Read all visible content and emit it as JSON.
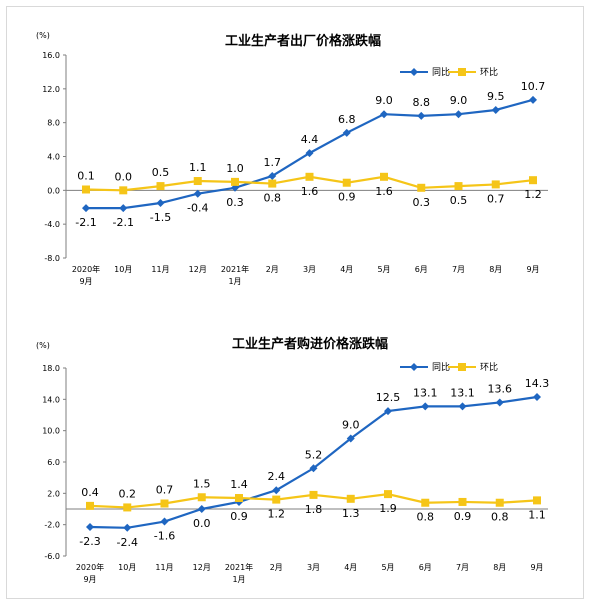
{
  "chart_data": [
    {
      "type": "line",
      "title": "工业生产者出厂价格涨跌幅",
      "unit": "(%)",
      "ylim": [
        -8.0,
        16.0
      ],
      "yticks": [
        "16.0",
        "12.0",
        "8.0",
        "4.0",
        "0.0",
        "-4.0",
        "-8.0"
      ],
      "ytick_values": [
        16,
        12,
        8,
        4,
        0,
        -4,
        -8
      ],
      "categories": [
        [
          "2020年",
          "9月"
        ],
        [
          "10月"
        ],
        [
          "11月"
        ],
        [
          "12月"
        ],
        [
          "2021年",
          "1月"
        ],
        [
          "2月"
        ],
        [
          "3月"
        ],
        [
          "4月"
        ],
        [
          "5月"
        ],
        [
          "6月"
        ],
        [
          "7月"
        ],
        [
          "8月"
        ],
        [
          "9月"
        ]
      ],
      "legend_position": "top-right",
      "series": [
        {
          "name": "同比",
          "color": "#1f66c1",
          "marker": "diamond",
          "values": [
            -2.1,
            -2.1,
            -1.5,
            -0.4,
            0.3,
            1.7,
            4.4,
            6.8,
            9.0,
            8.8,
            9.0,
            9.5,
            10.7
          ],
          "labels": [
            "-2.1",
            "-2.1",
            "-1.5",
            "-0.4",
            "0.3",
            "1.7",
            "4.4",
            "6.8",
            "9.0",
            "8.8",
            "9.0",
            "9.5",
            "10.7"
          ]
        },
        {
          "name": "环比",
          "color": "#f5c518",
          "marker": "square",
          "values": [
            0.1,
            0.0,
            0.5,
            1.1,
            1.0,
            0.8,
            1.6,
            0.9,
            1.6,
            0.3,
            0.5,
            0.7,
            1.2
          ],
          "labels": [
            "0.1",
            "0.0",
            "0.5",
            "1.1",
            "1.0",
            "0.8",
            "1.6",
            "0.9",
            "1.6",
            "0.3",
            "0.5",
            "0.7",
            "1.2"
          ]
        }
      ]
    },
    {
      "type": "line",
      "title": "工业生产者购进价格涨跌幅",
      "unit": "(%)",
      "ylim": [
        -6.0,
        18.0
      ],
      "yticks": [
        "18.0",
        "14.0",
        "10.0",
        "6.0",
        "2.0",
        "-2.0",
        "-6.0"
      ],
      "ytick_values": [
        18,
        14,
        10,
        6,
        2,
        -2,
        -6
      ],
      "categories": [
        [
          "2020年",
          "9月"
        ],
        [
          "10月"
        ],
        [
          "11月"
        ],
        [
          "12月"
        ],
        [
          "2021年",
          "1月"
        ],
        [
          "2月"
        ],
        [
          "3月"
        ],
        [
          "4月"
        ],
        [
          "5月"
        ],
        [
          "6月"
        ],
        [
          "7月"
        ],
        [
          "8月"
        ],
        [
          "9月"
        ]
      ],
      "legend_position": "top-right",
      "series": [
        {
          "name": "同比",
          "color": "#1f66c1",
          "marker": "diamond",
          "values": [
            -2.3,
            -2.4,
            -1.6,
            0.0,
            0.9,
            2.4,
            5.2,
            9.0,
            12.5,
            13.1,
            13.1,
            13.6,
            14.3
          ],
          "labels": [
            "-2.3",
            "-2.4",
            "-1.6",
            "0.0",
            "0.9",
            "2.4",
            "5.2",
            "9.0",
            "12.5",
            "13.1",
            "13.1",
            "13.6",
            "14.3"
          ]
        },
        {
          "name": "环比",
          "color": "#f5c518",
          "marker": "square",
          "values": [
            0.4,
            0.2,
            0.7,
            1.5,
            1.4,
            1.2,
            1.8,
            1.3,
            1.9,
            0.8,
            0.9,
            0.8,
            1.1
          ],
          "labels": [
            "0.4",
            "0.2",
            "0.7",
            "1.5",
            "1.4",
            "1.2",
            "1.8",
            "1.3",
            "1.9",
            "0.8",
            "0.9",
            "0.8",
            "1.1"
          ]
        }
      ]
    }
  ]
}
